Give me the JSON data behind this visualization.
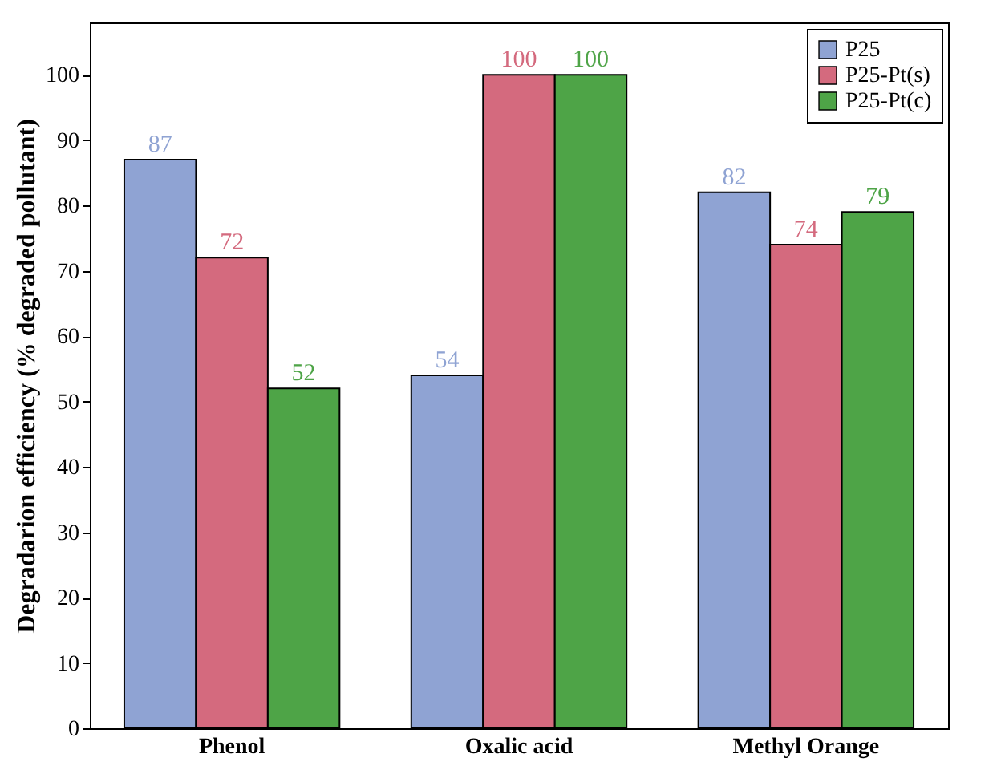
{
  "chart_data": {
    "type": "bar",
    "ylabel": "Degradarion efficiency (% degraded pollutant)",
    "categories": [
      "Phenol",
      "Oxalic acid",
      "Methyl Orange"
    ],
    "series": [
      {
        "name": "P25",
        "color": "#8fa3d3",
        "values": [
          87,
          54,
          82
        ]
      },
      {
        "name": "P25-Pt(s)",
        "color": "#d46a7e",
        "values": [
          72,
          100,
          74
        ]
      },
      {
        "name": "P25-Pt(c)",
        "color": "#4ea447",
        "values": [
          52,
          100,
          79
        ]
      }
    ],
    "ylim": [
      0,
      108
    ],
    "yticks": [
      0,
      10,
      20,
      30,
      40,
      50,
      60,
      70,
      80,
      90,
      100
    ],
    "grid": false,
    "legend": "top right",
    "data_labels": true
  }
}
